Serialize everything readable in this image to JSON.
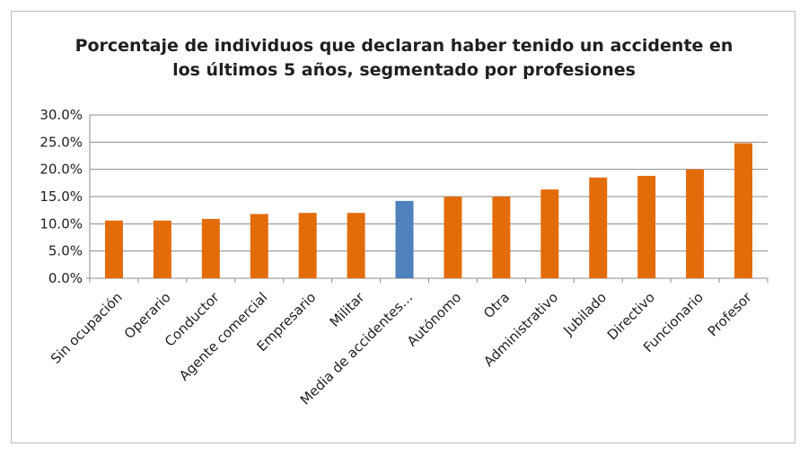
{
  "chart_data": {
    "type": "bar",
    "title_lines": [
      "Porcentaje de individuos que declaran haber tenido un accidente en",
      "los últimos 5 años, segmentado por profesiones"
    ],
    "categories": [
      "Sin ocupación",
      "Operario",
      "Conductor",
      "Agente comercial",
      "Empresario",
      "Militar",
      "Media de accidentes…",
      "Autónomo",
      "Otra",
      "Administrativo",
      "Jubilado",
      "Directivo",
      "Funcionario",
      "Profesor"
    ],
    "values": [
      10.6,
      10.6,
      10.9,
      11.8,
      12.0,
      12.0,
      14.2,
      15.0,
      15.0,
      16.3,
      18.5,
      18.8,
      20.0,
      24.8
    ],
    "ylim": [
      0,
      30
    ],
    "yticks": [
      "0.0%",
      "5.0%",
      "10.0%",
      "15.0%",
      "20.0%",
      "25.0%",
      "30.0%"
    ],
    "grid": true,
    "legend": "none",
    "colors": {
      "default": "#E36C0A",
      "highlight": "#4F81BD",
      "highlight_index": 6
    }
  }
}
